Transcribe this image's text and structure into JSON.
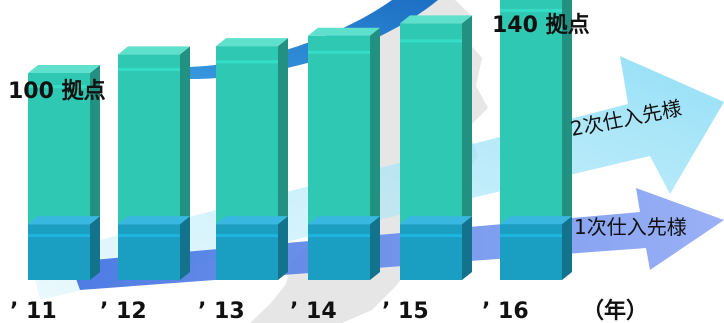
{
  "chart_data": {
    "type": "bar",
    "stacked": true,
    "categories": [
      "’ 11",
      "’ 12",
      "’ 13",
      "’ 14",
      "’ 15",
      "’ 16"
    ],
    "x_unit_label": "（年）",
    "series": [
      {
        "name": "1次仕入先様",
        "values": [
          27,
          27,
          27,
          27,
          27,
          27
        ]
      },
      {
        "name": "2次仕入先様",
        "values": [
          73,
          82,
          86,
          91,
          97,
          113
        ]
      }
    ],
    "totals": [
      100,
      109,
      113,
      118,
      124,
      140
    ],
    "annotations": {
      "first": "100 拠点",
      "last": "140 拠点"
    },
    "legend": "right, arrow labels",
    "ylim": [
      0,
      150
    ],
    "grid": false
  },
  "colors": {
    "segment_lower": "#1a9fc2",
    "segment_lower_top": "#38b8e0",
    "segment_upper": "#2fc9b3",
    "segment_upper_top": "#5fe0cc",
    "arrow_upper": "#7fd9f5",
    "arrow_lower": "#6f8ff0",
    "swoosh": "#2a8fd8",
    "map_silhouette": "#e3e3e3"
  }
}
